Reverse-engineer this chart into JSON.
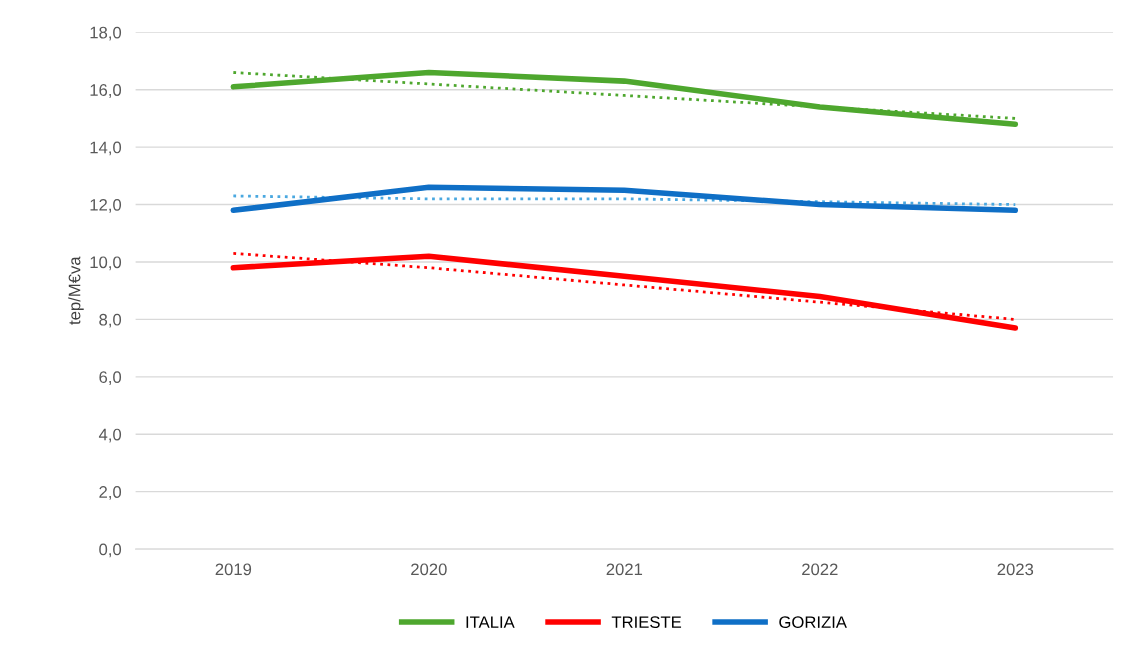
{
  "chart_data": {
    "type": "line",
    "ylabel": "tep/M€va",
    "categories": [
      "2019",
      "2020",
      "2021",
      "2022",
      "2023"
    ],
    "series": [
      {
        "name": "ITALIA",
        "color": "#4ea72e",
        "values": [
          16.1,
          16.6,
          16.3,
          15.4,
          14.8
        ]
      },
      {
        "name": "TRIESTE",
        "color": "#ff0000",
        "values": [
          9.8,
          10.2,
          9.5,
          8.8,
          7.7
        ]
      },
      {
        "name": "GORIZIA",
        "color": "#0f6fc6",
        "values": [
          11.8,
          12.6,
          12.5,
          12.0,
          11.8
        ]
      },
      {
        "color": "#4ea72e",
        "values": [
          16.6,
          16.2,
          15.8,
          15.4,
          15.0
        ],
        "line_style": "dotted"
      },
      {
        "color": "#ff0000",
        "values": [
          10.3,
          9.8,
          9.2,
          8.6,
          8.0
        ],
        "line_style": "dotted"
      },
      {
        "color": "#4aa8e0",
        "values": [
          12.3,
          12.2,
          12.2,
          12.1,
          12.0
        ],
        "line_style": "dotted"
      }
    ],
    "ylim": [
      0,
      18
    ],
    "yticks": [
      {
        "value": 0,
        "label": "0,0"
      },
      {
        "value": 2,
        "label": "2,0"
      },
      {
        "value": 4,
        "label": "4,0"
      },
      {
        "value": 6,
        "label": "6,0"
      },
      {
        "value": 8,
        "label": "8,0"
      },
      {
        "value": 10,
        "label": "10,0"
      },
      {
        "value": 12,
        "label": "12,0"
      },
      {
        "value": 14,
        "label": "14,0"
      },
      {
        "value": 16,
        "label": "16,0"
      },
      {
        "value": 18,
        "label": "18,0"
      }
    ],
    "grid": "y",
    "legend": "bottom",
    "line_style": "solid",
    "marker": "none"
  }
}
